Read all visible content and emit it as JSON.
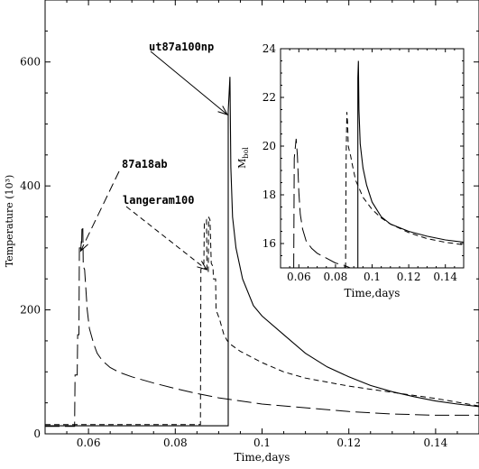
{
  "chart_data": [
    {
      "id": "main",
      "type": "line",
      "title": "",
      "xlabel": "Time,days",
      "ylabel": "Temperature (10³)",
      "xlim": [
        0.05,
        0.15
      ],
      "ylim": [
        0,
        700
      ],
      "x_ticks": [
        0.06,
        0.08,
        0.1,
        0.12,
        0.14
      ],
      "x_tick_labels": [
        "0.06",
        "0.08",
        "0.1",
        "0.12",
        "0.14"
      ],
      "y_ticks": [
        0,
        200,
        400,
        600
      ],
      "y_tick_labels": [
        "0",
        "200",
        "400",
        "600"
      ],
      "grid": false,
      "series": [
        {
          "name": "ut87a100np",
          "dash": "solid",
          "points": [
            [
              0.05,
              13
            ],
            [
              0.0922,
              13
            ],
            [
              0.0922,
              520
            ],
            [
              0.0926,
              576
            ],
            [
              0.0928,
              430
            ],
            [
              0.0932,
              350
            ],
            [
              0.094,
              300
            ],
            [
              0.0955,
              250
            ],
            [
              0.098,
              207
            ],
            [
              0.1,
              190
            ],
            [
              0.105,
              160
            ],
            [
              0.11,
              130
            ],
            [
              0.115,
              108
            ],
            [
              0.12,
              92
            ],
            [
              0.125,
              78
            ],
            [
              0.13,
              68
            ],
            [
              0.135,
              60
            ],
            [
              0.14,
              53
            ],
            [
              0.145,
              48
            ],
            [
              0.15,
              44
            ]
          ]
        },
        {
          "name": "langeram100",
          "dash": "short",
          "points": [
            [
              0.05,
              15
            ],
            [
              0.0858,
              15
            ],
            [
              0.0859,
              265
            ],
            [
              0.0866,
              275
            ],
            [
              0.0867,
              340
            ],
            [
              0.0872,
              345
            ],
            [
              0.0873,
              265
            ],
            [
              0.0876,
              260
            ],
            [
              0.0877,
              350
            ],
            [
              0.088,
              345
            ],
            [
              0.0883,
              275
            ],
            [
              0.0887,
              270
            ],
            [
              0.0888,
              250
            ],
            [
              0.0893,
              250
            ],
            [
              0.0894,
              200
            ],
            [
              0.0902,
              185
            ],
            [
              0.0912,
              160
            ],
            [
              0.092,
              150
            ],
            [
              0.093,
              143
            ],
            [
              0.095,
              133
            ],
            [
              0.1,
              115
            ],
            [
              0.105,
              100
            ],
            [
              0.11,
              90
            ],
            [
              0.12,
              77
            ],
            [
              0.13,
              67
            ],
            [
              0.14,
              57
            ],
            [
              0.15,
              45
            ]
          ]
        },
        {
          "name": "87a18ab",
          "dash": "long",
          "points": [
            [
              0.05,
              12
            ],
            [
              0.0568,
              12
            ],
            [
              0.0569,
              95
            ],
            [
              0.0574,
              95
            ],
            [
              0.0575,
              160
            ],
            [
              0.0578,
              160
            ],
            [
              0.0579,
              300
            ],
            [
              0.0584,
              300
            ],
            [
              0.0585,
              335
            ],
            [
              0.0587,
              335
            ],
            [
              0.0588,
              270
            ],
            [
              0.0591,
              265
            ],
            [
              0.0597,
              200
            ],
            [
              0.0602,
              170
            ],
            [
              0.0612,
              145
            ],
            [
              0.062,
              130
            ],
            [
              0.0632,
              118
            ],
            [
              0.065,
              107
            ],
            [
              0.0672,
              99
            ],
            [
              0.07,
              92
            ],
            [
              0.075,
              82
            ],
            [
              0.08,
              73
            ],
            [
              0.085,
              65
            ],
            [
              0.09,
              58
            ],
            [
              0.1,
              48
            ],
            [
              0.11,
              42
            ],
            [
              0.12,
              36
            ],
            [
              0.13,
              32
            ],
            [
              0.14,
              30
            ],
            [
              0.15,
              30
            ]
          ]
        }
      ],
      "annotations": [
        {
          "text": "ut87a100np",
          "arrow_to": [
            0.092,
            515
          ]
        },
        {
          "text": "87a18ab",
          "arrow_to": [
            0.0582,
            295
          ]
        },
        {
          "text": "langeram100",
          "arrow_to": [
            0.0872,
            265
          ]
        }
      ]
    },
    {
      "id": "inset",
      "type": "line",
      "title": "",
      "xlabel": "Time,days",
      "ylabel": "M_bol",
      "xlim": [
        0.05,
        0.15
      ],
      "ylim": [
        15,
        24
      ],
      "x_ticks": [
        0.06,
        0.08,
        0.1,
        0.12,
        0.14
      ],
      "x_tick_labels": [
        "0.06",
        "0.08",
        "0.1",
        "0.12",
        "0.14"
      ],
      "y_ticks": [
        16,
        18,
        20,
        22,
        24
      ],
      "y_tick_labels": [
        "16",
        "18",
        "20",
        "22",
        "24"
      ],
      "grid": false,
      "series": [
        {
          "name": "ut87a100np",
          "dash": "solid",
          "points": [
            [
              0.0922,
              15
            ],
            [
              0.0922,
              22.8
            ],
            [
              0.0925,
              23.5
            ],
            [
              0.0928,
              21.5
            ],
            [
              0.0935,
              20.1
            ],
            [
              0.095,
              19.1
            ],
            [
              0.097,
              18.4
            ],
            [
              0.1,
              17.7
            ],
            [
              0.105,
              17.1
            ],
            [
              0.11,
              16.8
            ],
            [
              0.12,
              16.5
            ],
            [
              0.13,
              16.3
            ],
            [
              0.14,
              16.15
            ],
            [
              0.15,
              16.05
            ]
          ]
        },
        {
          "name": "langeram100",
          "dash": "short",
          "points": [
            [
              0.0855,
              15
            ],
            [
              0.0858,
              19.4
            ],
            [
              0.0862,
              21.4
            ],
            [
              0.0866,
              21.0
            ],
            [
              0.087,
              20.0
            ],
            [
              0.0876,
              19.8
            ],
            [
              0.0883,
              19.6
            ],
            [
              0.089,
              19.3
            ],
            [
              0.091,
              18.6
            ],
            [
              0.095,
              17.9
            ],
            [
              0.1,
              17.4
            ],
            [
              0.105,
              17.05
            ],
            [
              0.11,
              16.8
            ],
            [
              0.12,
              16.45
            ],
            [
              0.13,
              16.2
            ],
            [
              0.14,
              16.05
            ],
            [
              0.15,
              15.95
            ]
          ]
        },
        {
          "name": "87a18ab",
          "dash": "long",
          "points": [
            [
              0.0572,
              15
            ],
            [
              0.0575,
              19.5
            ],
            [
              0.0585,
              20.3
            ],
            [
              0.0592,
              19.6
            ],
            [
              0.06,
              18.1
            ],
            [
              0.0608,
              17.2
            ],
            [
              0.062,
              16.6
            ],
            [
              0.064,
              16.1
            ],
            [
              0.067,
              15.8
            ],
            [
              0.07,
              15.6
            ],
            [
              0.075,
              15.4
            ],
            [
              0.08,
              15.2
            ],
            [
              0.085,
              15.1
            ],
            [
              0.088,
              15
            ]
          ]
        }
      ]
    }
  ]
}
